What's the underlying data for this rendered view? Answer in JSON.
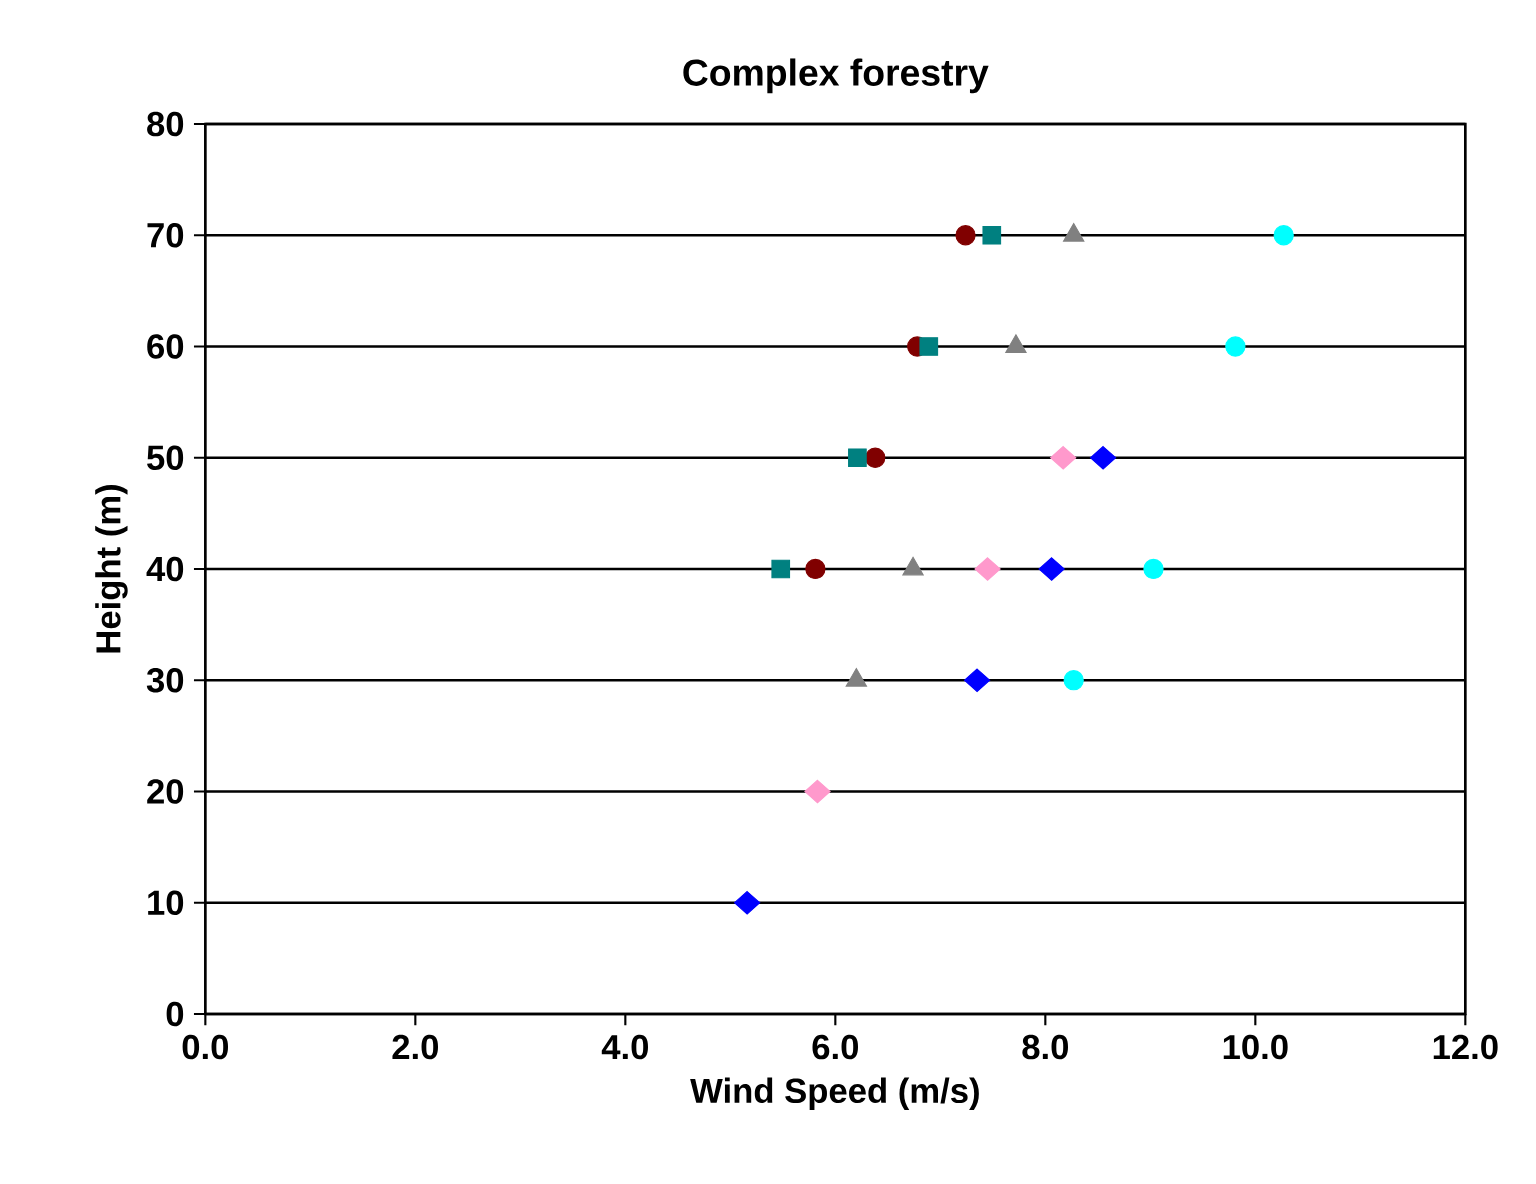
{
  "chart_data": {
    "type": "scatter",
    "title": "Complex forestry",
    "xlabel": "Wind Speed (m/s)",
    "ylabel": "Height (m)",
    "xlim": [
      0,
      12
    ],
    "ylim": [
      0,
      80
    ],
    "xticks": [
      {
        "value": 0,
        "label": "0.0"
      },
      {
        "value": 2,
        "label": "2.0"
      },
      {
        "value": 4,
        "label": "4.0"
      },
      {
        "value": 6,
        "label": "6.0"
      },
      {
        "value": 8,
        "label": "8.0"
      },
      {
        "value": 10,
        "label": "10.0"
      },
      {
        "value": 12,
        "label": "12.0"
      }
    ],
    "yticks": [
      0,
      10,
      20,
      30,
      40,
      50,
      60,
      70,
      80
    ],
    "grid": "y",
    "series": [
      {
        "color": "#0000ff",
        "marker": "diamond",
        "x": [
          5.16,
          7.35,
          8.06,
          8.55
        ],
        "values": [
          10,
          30,
          40,
          50
        ]
      },
      {
        "color": "#ff99cc",
        "marker": "diamond",
        "x": [
          5.83,
          7.45,
          8.17
        ],
        "values": [
          20,
          40,
          50
        ]
      },
      {
        "color": "#808080",
        "marker": "triangle",
        "x": [
          6.2,
          6.74,
          7.72,
          8.27
        ],
        "values": [
          30,
          40,
          60,
          70
        ]
      },
      {
        "color": "#00ffff",
        "marker": "circle",
        "x": [
          8.27,
          9.03,
          9.81,
          10.27
        ],
        "values": [
          30,
          40,
          60,
          70
        ]
      },
      {
        "color": "#800000",
        "marker": "circle",
        "x": [
          5.81,
          6.38,
          6.78,
          7.24
        ],
        "values": [
          40,
          50,
          60,
          70
        ]
      },
      {
        "color": "#008080",
        "marker": "square",
        "x": [
          5.48,
          6.21,
          6.89,
          7.49
        ],
        "values": [
          40,
          50,
          60,
          70
        ]
      }
    ]
  }
}
